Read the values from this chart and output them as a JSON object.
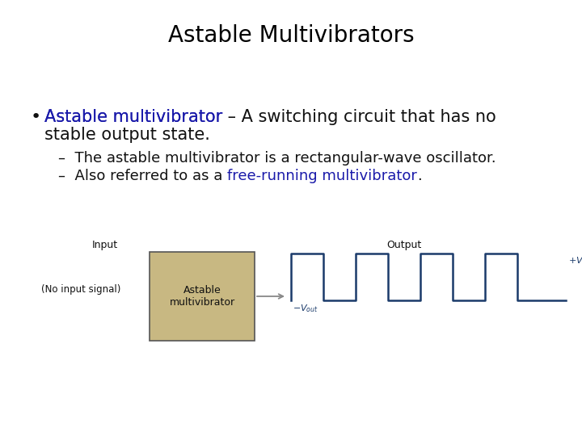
{
  "title": "Astable Multivibrators",
  "title_fontsize": 20,
  "title_color": "#000000",
  "background_color": "#ffffff",
  "bullet_blue": "Astable multivibrator",
  "bullet_dash": " – A switching circuit that has no",
  "bullet_line2": "stable output state.",
  "sub1": "The astable multivibrator is a rectangular-wave oscillator.",
  "sub2_pre": "Also referred to as a ",
  "sub2_blue": "free-running multivibrator",
  "sub2_post": ".",
  "bullet_fontsize": 15,
  "sub_fontsize": 13,
  "blue_color": "#1a1aaa",
  "black_color": "#111111",
  "gray_color": "#888888",
  "box_fill": "#C8B882",
  "box_edge": "#555555",
  "box_label": "Astable\nmultivibrator",
  "input_label": "Input",
  "no_input_label": "(No input signal)",
  "output_label": "Output",
  "signal_color": "#1a3a6a"
}
